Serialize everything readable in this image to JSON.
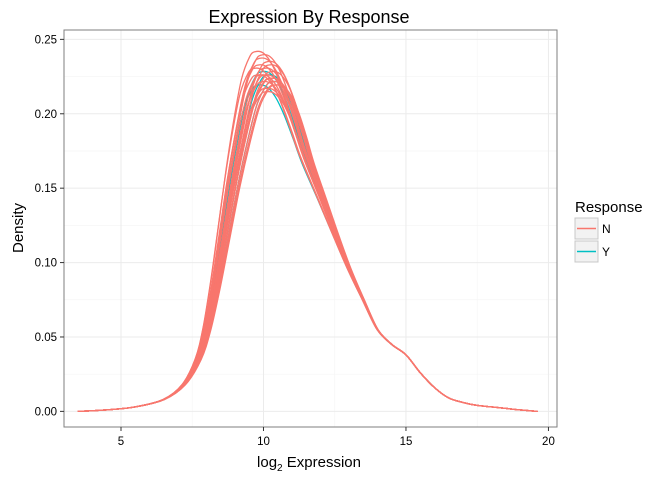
{
  "chart_data": {
    "type": "line",
    "title": "Expression By Response",
    "xlabel_base": "log",
    "xlabel_sub": "2",
    "xlabel_rest": " Expression",
    "ylabel": "Density",
    "xlim": [
      3,
      20.3
    ],
    "ylim": [
      -0.0105,
      0.2563
    ],
    "x_ticks": [
      5,
      10,
      15,
      20
    ],
    "x_tick_labels": [
      "5",
      "10",
      "15",
      "20"
    ],
    "y_ticks": [
      0.0,
      0.05,
      0.1,
      0.15,
      0.2,
      0.25
    ],
    "y_tick_labels": [
      "0.00",
      "0.05",
      "0.10",
      "0.15",
      "0.20",
      "0.25"
    ],
    "grid": true,
    "legend": {
      "title": "Response",
      "position": "right",
      "entries": [
        {
          "label": "N",
          "color": "#f8766d"
        },
        {
          "label": "Y",
          "color": "#00bfc4"
        }
      ]
    },
    "colors": {
      "N": "#f8766d",
      "Y": "#00bfc4"
    },
    "base_curve": {
      "x": [
        3.5,
        4.5,
        5.5,
        6.5,
        7.2,
        7.7,
        8.0,
        8.3,
        8.6,
        8.9,
        9.2,
        9.5,
        9.8,
        10.0,
        10.3,
        10.6,
        10.9,
        11.2,
        11.5,
        12.0,
        12.5,
        13.0,
        13.5,
        14.0,
        14.5,
        15.0,
        15.5,
        16.0,
        16.5,
        17.0,
        17.5,
        18.0,
        18.5,
        19.0,
        19.6
      ],
      "y": [
        0.0,
        0.001,
        0.003,
        0.008,
        0.018,
        0.035,
        0.055,
        0.085,
        0.12,
        0.155,
        0.185,
        0.21,
        0.223,
        0.226,
        0.225,
        0.218,
        0.205,
        0.188,
        0.17,
        0.145,
        0.12,
        0.096,
        0.075,
        0.055,
        0.045,
        0.038,
        0.026,
        0.016,
        0.009,
        0.006,
        0.004,
        0.003,
        0.002,
        0.001,
        0.0
      ]
    },
    "series_groups": [
      {
        "name": "Y",
        "count": 4,
        "x_shifts": [
          -0.08,
          0.05,
          0.12,
          -0.03
        ],
        "y_scales": [
          0.97,
          1.0,
          0.98,
          1.01
        ]
      },
      {
        "name": "N",
        "count": 20,
        "x_shifts": [
          -0.12,
          -0.08,
          -0.05,
          -0.02,
          0.0,
          0.02,
          0.05,
          0.08,
          0.1,
          0.14,
          -0.1,
          -0.06,
          0.03,
          0.07,
          0.12,
          -0.03,
          0.01,
          0.09,
          -0.14,
          0.16
        ],
        "y_scales": [
          1.07,
          1.03,
          1.0,
          0.98,
          1.02,
          0.96,
          1.04,
          0.99,
          1.01,
          0.97,
          1.0,
          1.05,
          0.95,
          1.03,
          0.98,
          1.06,
          1.0,
          0.99,
          1.02,
          0.97
        ]
      }
    ]
  }
}
